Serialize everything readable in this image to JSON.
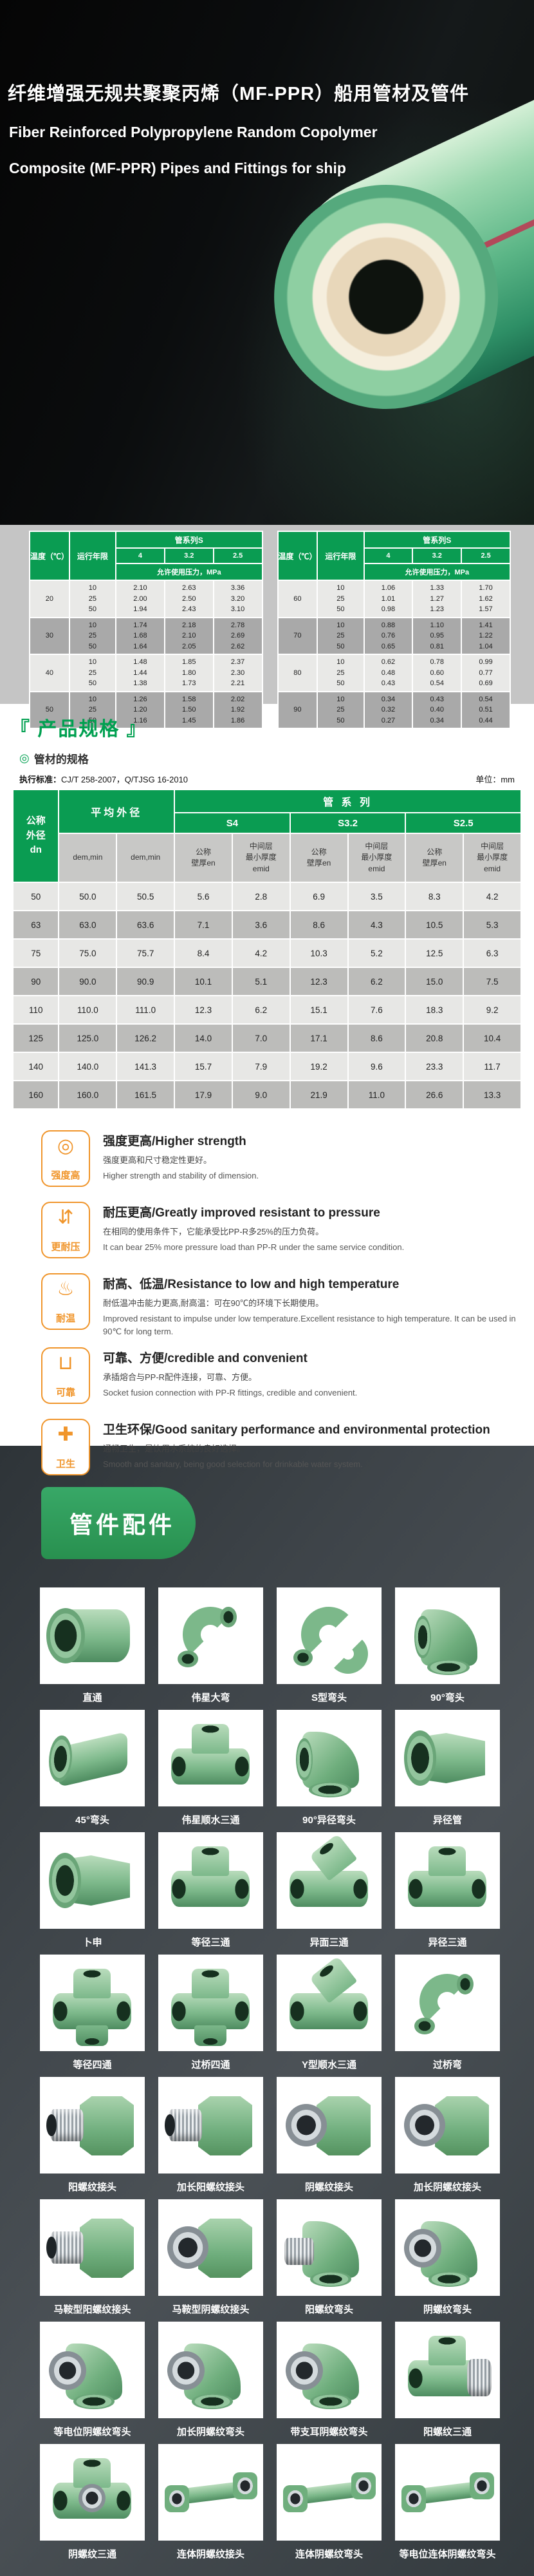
{
  "colors": {
    "accent_green": "#0a9c52",
    "banner_green": "#2f9e5a",
    "title_green": "#00a050",
    "feature_orange": "#f0952b",
    "pipe_green": "#5cb687",
    "stripe_red": "#b2495a"
  },
  "header": {
    "title_zh": "纤维增强无规共聚聚丙烯（MF-PPR）船用管材及管件",
    "title_en1": "Fiber Reinforced Polypropylene Random Copolymer",
    "title_en2": "Composite (MF-PPR) Pipes and Fittings for ship"
  },
  "ptable": {
    "temp_h": "温度（℃）",
    "years_h": "运行年限",
    "series_h": "管系列S",
    "s1": "4",
    "s2": "3.2",
    "s3": "2.5",
    "mpa_h": "允许使用压力，MPa",
    "left_groups": [
      {
        "temp": "20",
        "years": "10\n25\n50",
        "v4": "2.10\n2.00\n1.94",
        "v32": "2.63\n2.50\n2.43",
        "v25": "3.36\n3.20\n3.10"
      },
      {
        "temp": "30",
        "years": "10\n25\n50",
        "v4": "1.74\n1.68\n1.64",
        "v32": "2.18\n2.10\n2.05",
        "v25": "2.78\n2.69\n2.62"
      },
      {
        "temp": "40",
        "years": "10\n25\n50",
        "v4": "1.48\n1.44\n1.38",
        "v32": "1.85\n1.80\n1.73",
        "v25": "2.37\n2.30\n2.21"
      },
      {
        "temp": "50",
        "years": "10\n25\n50",
        "v4": "1.26\n1.20\n1.16",
        "v32": "1.58\n1.50\n1.45",
        "v25": "2.02\n1.92\n1.86"
      }
    ],
    "right_groups": [
      {
        "temp": "60",
        "years": "10\n25\n50",
        "v4": "1.06\n1.01\n0.98",
        "v32": "1.33\n1.27\n1.23",
        "v25": "1.70\n1.62\n1.57"
      },
      {
        "temp": "70",
        "years": "10\n25\n50",
        "v4": "0.88\n0.76\n0.65",
        "v32": "1.10\n0.95\n0.81",
        "v25": "1.41\n1.22\n1.04"
      },
      {
        "temp": "80",
        "years": "10\n25\n50",
        "v4": "0.62\n0.48\n0.43",
        "v32": "0.78\n0.60\n0.54",
        "v25": "0.99\n0.77\n0.69"
      },
      {
        "temp": "90",
        "years": "10\n25\n50",
        "v4": "0.34\n0.32\n0.27",
        "v32": "0.43\n0.40\n0.34",
        "v25": "0.54\n0.51\n0.44"
      }
    ]
  },
  "spec": {
    "section_title": "『 产品规格 』",
    "bullet": "◎",
    "subtitle": "管材的规格",
    "standard_label": "执行标准：",
    "standard_value": "CJ/T 258-2007，Q/TJSG 16-2010",
    "unit": "单位：mm",
    "h_dn": "公称\n外径\ndn",
    "h_avg": "平均外径",
    "h_series": "管 系 列",
    "h_s4": "S4",
    "h_s32": "S3.2",
    "h_s25": "S2.5",
    "h_dem1": "dem,min",
    "h_dem2": "dem,min",
    "h_wall": "公称\n壁厚en",
    "h_mid": "中间层\n最小厚度\nemid",
    "rows": [
      {
        "dn": "50",
        "d1": "50.0",
        "d2": "50.5",
        "s4en": "5.6",
        "s4mid": "2.8",
        "s32en": "6.9",
        "s32mid": "3.5",
        "s25en": "8.3",
        "s25mid": "4.2"
      },
      {
        "dn": "63",
        "d1": "63.0",
        "d2": "63.6",
        "s4en": "7.1",
        "s4mid": "3.6",
        "s32en": "8.6",
        "s32mid": "4.3",
        "s25en": "10.5",
        "s25mid": "5.3"
      },
      {
        "dn": "75",
        "d1": "75.0",
        "d2": "75.7",
        "s4en": "8.4",
        "s4mid": "4.2",
        "s32en": "10.3",
        "s32mid": "5.2",
        "s25en": "12.5",
        "s25mid": "6.3"
      },
      {
        "dn": "90",
        "d1": "90.0",
        "d2": "90.9",
        "s4en": "10.1",
        "s4mid": "5.1",
        "s32en": "12.3",
        "s32mid": "6.2",
        "s25en": "15.0",
        "s25mid": "7.5"
      },
      {
        "dn": "110",
        "d1": "110.0",
        "d2": "111.0",
        "s4en": "12.3",
        "s4mid": "6.2",
        "s32en": "15.1",
        "s32mid": "7.6",
        "s25en": "18.3",
        "s25mid": "9.2"
      },
      {
        "dn": "125",
        "d1": "125.0",
        "d2": "126.2",
        "s4en": "14.0",
        "s4mid": "7.0",
        "s32en": "17.1",
        "s32mid": "8.6",
        "s25en": "20.8",
        "s25mid": "10.4"
      },
      {
        "dn": "140",
        "d1": "140.0",
        "d2": "141.3",
        "s4en": "15.7",
        "s4mid": "7.9",
        "s32en": "19.2",
        "s32mid": "9.6",
        "s25en": "23.3",
        "s25mid": "11.7"
      },
      {
        "dn": "160",
        "d1": "160.0",
        "d2": "161.5",
        "s4en": "17.9",
        "s4mid": "9.0",
        "s32en": "21.9",
        "s32mid": "11.0",
        "s25en": "26.6",
        "s25mid": "13.3"
      }
    ]
  },
  "features": [
    {
      "icon": "pipe-cross-section-icon",
      "glyph": "◎",
      "badge": "强度高",
      "title": "强度更高/Higher strength",
      "zh": "强度更高和尺寸稳定性更好。",
      "en": "Higher strength and stability of dimension."
    },
    {
      "icon": "pressure-arrows-icon",
      "glyph": "⇵",
      "badge": "更耐压",
      "title": "耐压更高/Greatly improved resistant to pressure",
      "zh": "在相同的使用条件下，它能承受比PP-R多25%的压力负荷。",
      "en": "It can bear 25% more pressure load than PP-R under the same service condition."
    },
    {
      "icon": "thermometer-icon",
      "glyph": "♨",
      "badge": "耐温",
      "title": "耐高、低温/Resistance to low and high temperature",
      "zh": "耐低温冲击能力更高,耐高温：可在90℃的环境下长期使用。",
      "en": "Improved resistant to impulse under low temperature.Excellent resistance to high temperature. It can be used in 90℃ for long term."
    },
    {
      "icon": "socket-joint-icon",
      "glyph": "⊔",
      "badge": "可靠",
      "title": "可靠、方便/credible and convenient",
      "zh": "承插熔合与PP-R配件连接，可靠、方便。",
      "en": "Socket fusion connection with PP-R fittings, credible and convenient."
    },
    {
      "icon": "water-drop-icon",
      "glyph": "✚",
      "badge": "卫生",
      "title": "卫生环保/Good sanitary performance and environmental protection",
      "zh": "通畅卫生，是饮用水系统的良好选择。",
      "en": "Smooth and sanitary, being good selection for drinkable water system."
    }
  ],
  "fittings": {
    "banner": "管件配件",
    "products": [
      {
        "label": "直通",
        "shape": "coupling"
      },
      {
        "label": "伟星大弯",
        "shape": "bend"
      },
      {
        "label": "S型弯头",
        "shape": "sbend"
      },
      {
        "label": "90°弯头",
        "shape": "elbow90"
      },
      {
        "label": "45°弯头",
        "shape": "elbow45"
      },
      {
        "label": "伟星顺水三通",
        "shape": "tee"
      },
      {
        "label": "90°异径弯头",
        "shape": "elbow90"
      },
      {
        "label": "异径管",
        "shape": "reducer"
      },
      {
        "label": "卜申",
        "shape": "reducer"
      },
      {
        "label": "等径三通",
        "shape": "tee"
      },
      {
        "label": "异面三通",
        "shape": "ytee"
      },
      {
        "label": "异径三通",
        "shape": "tee"
      },
      {
        "label": "等径四通",
        "shape": "cross"
      },
      {
        "label": "过桥四通",
        "shape": "cross"
      },
      {
        "label": "Y型顺水三通",
        "shape": "ytee"
      },
      {
        "label": "过桥弯",
        "shape": "bend"
      },
      {
        "label": "阳螺纹接头",
        "shape": "male-adapter"
      },
      {
        "label": "加长阳螺纹接头",
        "shape": "male-adapter"
      },
      {
        "label": "阴螺纹接头",
        "shape": "female-adapter"
      },
      {
        "label": "加长阴螺纹接头",
        "shape": "female-adapter"
      },
      {
        "label": "马鞍型阳螺纹接头",
        "shape": "male-adapter"
      },
      {
        "label": "马鞍型阴螺纹接头",
        "shape": "female-adapter"
      },
      {
        "label": "阳螺纹弯头",
        "shape": "elbow-male"
      },
      {
        "label": "阴螺纹弯头",
        "shape": "elbow-female"
      },
      {
        "label": "等电位阴螺纹弯头",
        "shape": "elbow-female"
      },
      {
        "label": "加长阴螺纹弯头",
        "shape": "elbow-female"
      },
      {
        "label": "带支耳阴螺纹弯头",
        "shape": "elbow-female"
      },
      {
        "label": "阳螺纹三通",
        "shape": "tee-male"
      },
      {
        "label": "阴螺纹三通",
        "shape": "tee-female"
      },
      {
        "label": "连体阴螺纹接头",
        "shape": "bar"
      },
      {
        "label": "连体阴螺纹弯头",
        "shape": "bar"
      },
      {
        "label": "等电位连体阴螺纹弯头",
        "shape": "bar"
      }
    ]
  }
}
